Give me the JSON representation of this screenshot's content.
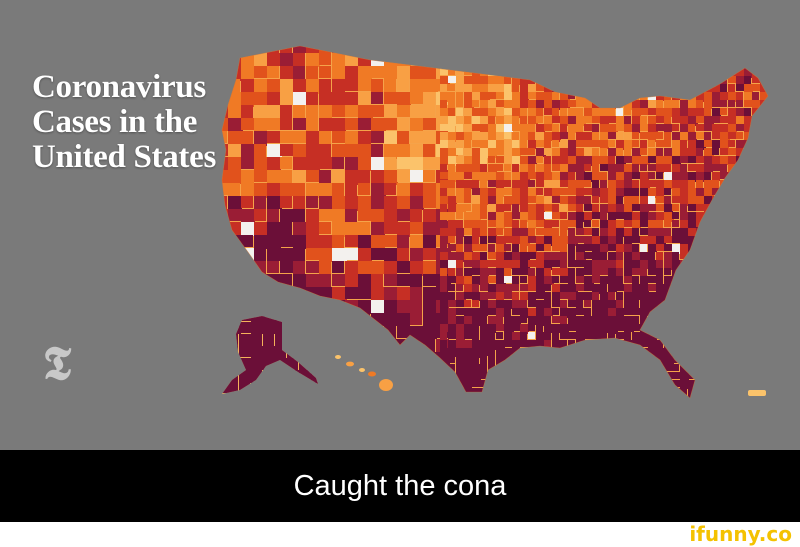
{
  "map": {
    "title_lines": [
      "Coronavirus",
      "Cases in the",
      "United States"
    ],
    "publisher_logo_icon": "nyt-logo-icon",
    "colors": {
      "background": "#7a7a7a",
      "scale": [
        "#fbe3a8",
        "#fbc36b",
        "#f8a044",
        "#f07a25",
        "#e1521c",
        "#c62f24",
        "#9a1d35",
        "#6b0f38"
      ],
      "no_data": "#f3f1ee"
    }
  },
  "meme": {
    "caption": "Caught the cona"
  },
  "watermark": {
    "text": "ifunny.co"
  }
}
